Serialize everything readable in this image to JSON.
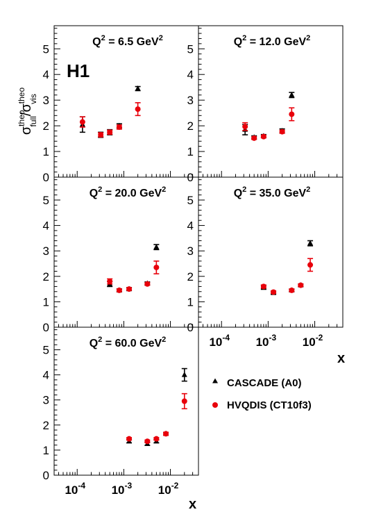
{
  "figure": {
    "experiment_label": "H1",
    "y_axis_title": {
      "sigma": "σ",
      "full": "full",
      "vis": "vis",
      "theo": "theo",
      "slash": "/"
    },
    "x_axis_title": "x",
    "legend": [
      {
        "label": "CASCADE (A0)",
        "marker": "triangle",
        "color": "#000000"
      },
      {
        "label": "HVQDIS (CT10f3)",
        "marker": "circle",
        "color": "#e8000b"
      }
    ]
  },
  "chart_data": [
    {
      "type": "scatter",
      "title": "Q² = 6.5 GeV²",
      "title_parts": {
        "pre": "Q",
        "sup1": "2",
        "mid": " = 6.5 GeV",
        "sup2": "2"
      },
      "xscale": "log",
      "xlim": [
        3.2e-05,
        0.04
      ],
      "ylim": [
        0,
        5.9
      ],
      "y_ticks": [
        0,
        1,
        2,
        3,
        4,
        5
      ],
      "series": [
        {
          "name": "CASCADE (A0)",
          "x": [
            0.00013,
            0.00032,
            0.0005,
            0.0008,
            0.002
          ],
          "y": [
            2.05,
            1.65,
            1.75,
            2.0,
            3.45
          ],
          "err": [
            0.3,
            0.1,
            0.1,
            0.08,
            0.08
          ]
        },
        {
          "name": "HVQDIS (CT10f3)",
          "x": [
            0.00013,
            0.00032,
            0.0005,
            0.0008,
            0.002
          ],
          "y": [
            2.15,
            1.65,
            1.75,
            1.95,
            2.65
          ],
          "err": [
            0.2,
            0.08,
            0.08,
            0.08,
            0.25
          ]
        }
      ]
    },
    {
      "type": "scatter",
      "title": "Q² = 12.0 GeV²",
      "title_parts": {
        "pre": "Q",
        "sup1": "2",
        "mid": " = 12.0 GeV",
        "sup2": "2"
      },
      "xscale": "log",
      "xlim": [
        3.2e-05,
        0.04
      ],
      "ylim": [
        0,
        5.9
      ],
      "y_ticks": [
        0,
        1,
        2,
        3,
        4,
        5
      ],
      "series": [
        {
          "name": "CASCADE (A0)",
          "x": [
            0.00032,
            0.0005,
            0.0008,
            0.002,
            0.0032
          ],
          "y": [
            1.85,
            1.55,
            1.6,
            1.8,
            3.2
          ],
          "err": [
            0.2,
            0.06,
            0.06,
            0.08,
            0.1
          ]
        },
        {
          "name": "HVQDIS (CT10f3)",
          "x": [
            0.00032,
            0.0005,
            0.0008,
            0.002,
            0.0032
          ],
          "y": [
            1.97,
            1.52,
            1.58,
            1.77,
            2.45
          ],
          "err": [
            0.15,
            0.05,
            0.05,
            0.06,
            0.25
          ]
        }
      ]
    },
    {
      "type": "scatter",
      "title": "Q² = 20.0 GeV²",
      "title_parts": {
        "pre": "Q",
        "sup1": "2",
        "mid": " = 20.0 GeV",
        "sup2": "2"
      },
      "xscale": "log",
      "xlim": [
        3.2e-05,
        0.04
      ],
      "ylim": [
        0,
        5.9
      ],
      "y_ticks": [
        0,
        1,
        2,
        3,
        4,
        5
      ],
      "series": [
        {
          "name": "CASCADE (A0)",
          "x": [
            0.0005,
            0.0008,
            0.0013,
            0.0032,
            0.005
          ],
          "y": [
            1.7,
            1.45,
            1.5,
            1.72,
            3.15
          ],
          "err": [
            0.1,
            0.06,
            0.06,
            0.06,
            0.1
          ]
        },
        {
          "name": "HVQDIS (CT10f3)",
          "x": [
            0.0005,
            0.0008,
            0.0013,
            0.0032,
            0.005
          ],
          "y": [
            1.8,
            1.45,
            1.5,
            1.7,
            2.35
          ],
          "err": [
            0.1,
            0.05,
            0.05,
            0.05,
            0.25
          ]
        }
      ]
    },
    {
      "type": "scatter",
      "title": "Q² = 35.0 GeV²",
      "title_parts": {
        "pre": "Q",
        "sup1": "2",
        "mid": " = 35.0 GeV",
        "sup2": "2"
      },
      "xscale": "log",
      "xlim": [
        3.2e-05,
        0.04
      ],
      "ylim": [
        0,
        5.9
      ],
      "y_ticks": [
        0,
        1,
        2,
        3,
        4,
        5
      ],
      "x_ticks": [
        {
          "value": 0.0001,
          "base": "10",
          "exp": "-4"
        },
        {
          "value": 0.001,
          "base": "10",
          "exp": "-3"
        },
        {
          "value": 0.01,
          "base": "10",
          "exp": "-2"
        }
      ],
      "series": [
        {
          "name": "CASCADE (A0)",
          "x": [
            0.0008,
            0.0013,
            0.0032,
            0.005,
            0.008
          ],
          "y": [
            1.57,
            1.35,
            1.45,
            1.65,
            3.3
          ],
          "err": [
            0.08,
            0.05,
            0.05,
            0.05,
            0.1
          ]
        },
        {
          "name": "HVQDIS (CT10f3)",
          "x": [
            0.0008,
            0.0013,
            0.0032,
            0.005,
            0.008
          ],
          "y": [
            1.6,
            1.38,
            1.45,
            1.65,
            2.45
          ],
          "err": [
            0.06,
            0.05,
            0.05,
            0.05,
            0.25
          ]
        }
      ]
    },
    {
      "type": "scatter",
      "title": "Q² = 60.0 GeV²",
      "title_parts": {
        "pre": "Q",
        "sup1": "2",
        "mid": " = 60.0 GeV",
        "sup2": "2"
      },
      "xscale": "log",
      "xlim": [
        3.2e-05,
        0.04
      ],
      "ylim": [
        0,
        5.9
      ],
      "y_ticks": [
        0,
        1,
        2,
        3,
        4,
        5
      ],
      "x_ticks": [
        {
          "value": 0.0001,
          "base": "10",
          "exp": "-4"
        },
        {
          "value": 0.001,
          "base": "10",
          "exp": "-3"
        },
        {
          "value": 0.01,
          "base": "10",
          "exp": "-2"
        }
      ],
      "series": [
        {
          "name": "CASCADE (A0)",
          "x": [
            0.0013,
            0.0032,
            0.005,
            0.008,
            0.02
          ],
          "y": [
            1.35,
            1.25,
            1.35,
            1.65,
            4.0
          ],
          "err": [
            0.06,
            0.06,
            0.06,
            0.06,
            0.25
          ]
        },
        {
          "name": "HVQDIS (CT10f3)",
          "x": [
            0.0013,
            0.0032,
            0.005,
            0.008,
            0.02
          ],
          "y": [
            1.45,
            1.35,
            1.45,
            1.65,
            2.95
          ],
          "err": [
            0.05,
            0.05,
            0.05,
            0.06,
            0.3
          ]
        }
      ]
    }
  ]
}
